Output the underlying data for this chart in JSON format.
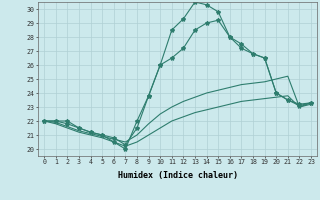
{
  "xlabel": "Humidex (Indice chaleur)",
  "xlim": [
    -0.5,
    23.5
  ],
  "ylim": [
    19.5,
    30.5
  ],
  "xticks": [
    0,
    1,
    2,
    3,
    4,
    5,
    6,
    7,
    8,
    9,
    10,
    11,
    12,
    13,
    14,
    15,
    16,
    17,
    18,
    19,
    20,
    21,
    22,
    23
  ],
  "yticks": [
    20,
    21,
    22,
    23,
    24,
    25,
    26,
    27,
    28,
    29,
    30
  ],
  "background_color": "#cce9ec",
  "line_color": "#2e7d6e",
  "grid_color": "#b0d0d4",
  "lines": [
    {
      "x": [
        0,
        1,
        2,
        3,
        4,
        5,
        6,
        7,
        8,
        9,
        10,
        11,
        12,
        13,
        14,
        15,
        16,
        17,
        18,
        19,
        20,
        21,
        22,
        23
      ],
      "y": [
        22,
        21.8,
        21.5,
        21.2,
        21.0,
        20.8,
        20.5,
        20.2,
        20.5,
        21.0,
        21.5,
        22.0,
        22.3,
        22.6,
        22.8,
        23.0,
        23.2,
        23.4,
        23.5,
        23.6,
        23.7,
        23.8,
        23.0,
        23.2
      ],
      "marker": false
    },
    {
      "x": [
        0,
        1,
        2,
        3,
        4,
        5,
        6,
        7,
        8,
        9,
        10,
        11,
        12,
        13,
        14,
        15,
        16,
        17,
        18,
        19,
        20,
        21,
        22,
        23
      ],
      "y": [
        22,
        21.9,
        21.6,
        21.3,
        21.1,
        20.9,
        20.7,
        20.5,
        21.0,
        21.8,
        22.5,
        23.0,
        23.4,
        23.7,
        24.0,
        24.2,
        24.4,
        24.6,
        24.7,
        24.8,
        25.0,
        25.2,
        23.0,
        23.3
      ],
      "marker": false
    },
    {
      "x": [
        0,
        1,
        2,
        3,
        4,
        5,
        6,
        7,
        8,
        9,
        10,
        11,
        12,
        13,
        14,
        15,
        16,
        17,
        18,
        19,
        20,
        21,
        22,
        23
      ],
      "y": [
        22,
        22,
        21.8,
        21.5,
        21.2,
        21.0,
        20.8,
        20.3,
        21.5,
        23.8,
        26.0,
        26.5,
        27.2,
        28.5,
        29.0,
        29.2,
        28.0,
        27.5,
        26.8,
        26.5,
        24.0,
        23.5,
        23.1,
        23.3
      ],
      "marker": true
    },
    {
      "x": [
        0,
        1,
        2,
        3,
        4,
        5,
        6,
        7,
        8,
        9,
        10,
        11,
        12,
        13,
        14,
        15,
        16,
        17,
        18,
        19,
        20,
        21,
        22,
        23
      ],
      "y": [
        22,
        22,
        22,
        21.5,
        21.2,
        21.0,
        20.5,
        20.0,
        22.0,
        23.8,
        26.0,
        28.5,
        29.3,
        30.5,
        30.3,
        29.8,
        28.0,
        27.2,
        26.8,
        26.5,
        24.0,
        23.5,
        23.2,
        23.3
      ],
      "marker": true
    }
  ]
}
